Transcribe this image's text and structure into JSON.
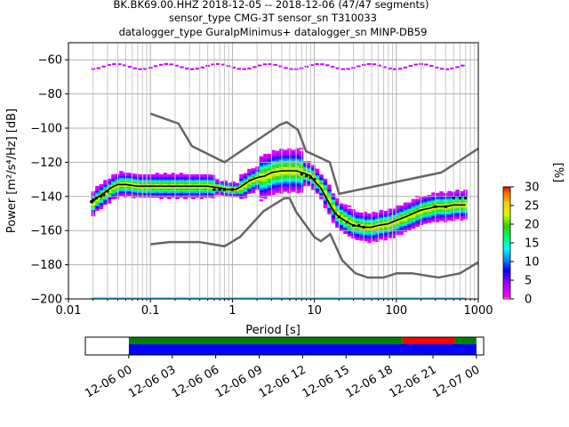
{
  "title": {
    "line1": "BK.BK69.00.HHZ   2018-12-05 -- 2018-12-06  (47/47 segments)",
    "line2": "sensor_type CMG-3T sensor_sn T310033",
    "line3": "datalogger_type GuralpMinimus+ datalogger_sn MINP-DB59"
  },
  "chart_data": [
    {
      "type": "heatmap",
      "title": "BK.BK69.00.HHZ   2018-12-05 -- 2018-12-06  (47/47 segments)",
      "xlabel": "Period [s]",
      "ylabel": "Power [m²/s⁴/Hz] [dB]",
      "xscale": "log",
      "xlim": [
        0.01,
        1000
      ],
      "ylim": [
        -200,
        -50
      ],
      "x_tick_labels": [
        "0.01",
        "0.1",
        "1",
        "10",
        "100",
        "1000"
      ],
      "y_ticks": [
        -200,
        -180,
        -160,
        -140,
        -120,
        -100,
        -80,
        -60
      ],
      "y_tick_labels": [
        "−200",
        "−180",
        "−160",
        "−140",
        "−120",
        "−100",
        "−80",
        "−60"
      ],
      "colorbar": {
        "label": "[%]",
        "range": [
          0,
          30
        ],
        "ticks": [
          0,
          5,
          10,
          15,
          20,
          25,
          30
        ]
      },
      "grid": true,
      "mode_curve": {
        "x": [
          0.019,
          0.022,
          0.027,
          0.033,
          0.04,
          0.05,
          0.07,
          0.1,
          0.15,
          0.2,
          0.3,
          0.5,
          0.7,
          0.9,
          1.1,
          1.3,
          1.6,
          2.0,
          2.5,
          3.0,
          4.0,
          5.0,
          6.0,
          7.0,
          8.0,
          9.0,
          10.0,
          12.0,
          14.0,
          16.0,
          18.0,
          20.0,
          25.0,
          30.0,
          40.0,
          50.0,
          60.0,
          80.0,
          100.0,
          130.0,
          160.0,
          200.0,
          250.0,
          300.0,
          400.0,
          500.0,
          600.0,
          700.0
        ],
        "y": [
          -144,
          -141,
          -138,
          -135,
          -133,
          -133,
          -134,
          -134,
          -134,
          -134,
          -134,
          -134,
          -135,
          -136,
          -136,
          -134,
          -131,
          -129,
          -128,
          -126,
          -125,
          -125,
          -125,
          -126,
          -127,
          -128,
          -131,
          -135,
          -141,
          -146,
          -150,
          -152,
          -155,
          -157,
          -158,
          -158,
          -157,
          -156,
          -154,
          -152,
          -150,
          -148,
          -147,
          -146,
          -146,
          -145,
          -145,
          -145
        ]
      },
      "mode_markers": {
        "x": [
          0.019,
          0.02,
          0.022,
          0.025,
          0.027,
          0.03,
          0.6,
          0.7,
          0.8,
          1.0,
          7,
          8,
          9,
          10,
          18,
          20,
          25,
          30,
          35,
          40,
          300,
          400,
          500,
          600,
          700
        ],
        "y": [
          -143,
          -142,
          -141,
          -140,
          -139,
          -137,
          -136,
          -136,
          -136,
          -136,
          -127,
          -128,
          -129,
          -130,
          -150,
          -152,
          -155,
          -157,
          -157,
          -158,
          -146,
          -146,
          -141,
          -141,
          -141
        ]
      },
      "noise_models": [
        {
          "name": "high-noise-model",
          "x": [
            0.1,
            0.22,
            0.32,
            0.8,
            3.8,
            4.6,
            6.3,
            7.9,
            15.4,
            20.0,
            354.8,
            1000.0
          ],
          "y": [
            -91.5,
            -97.4,
            -110.5,
            -120.0,
            -98.0,
            -96.5,
            -101.0,
            -113.5,
            -120.0,
            -138.5,
            -126.0,
            -112.0
          ]
        },
        {
          "name": "low-noise-model",
          "x": [
            0.1,
            0.17,
            0.4,
            0.8,
            1.24,
            2.4,
            4.3,
            5.0,
            6.0,
            10.0,
            12.0,
            15.6,
            21.9,
            31.6,
            45.0,
            70.0,
            101.0,
            154.0,
            328.0,
            600.0,
            1000.0
          ],
          "y": [
            -168.0,
            -166.7,
            -166.7,
            -169.2,
            -163.7,
            -148.6,
            -141.1,
            -141.1,
            -149.0,
            -163.8,
            -166.2,
            -162.1,
            -177.5,
            -185.0,
            -187.5,
            -187.5,
            -185.0,
            -185.0,
            -187.5,
            -185.0,
            -178.5
          ]
        }
      ]
    },
    {
      "type": "bar",
      "title": "",
      "xlabel": "",
      "ylabel": "",
      "x_tick_labels": [
        "12-06 00",
        "12-06 03",
        "12-06 06",
        "12-06 09",
        "12-06 12",
        "12-06 15",
        "12-06 18",
        "12-06 21",
        "12-07 00"
      ],
      "xlim_hours": [
        -3,
        24.5
      ],
      "data_coverage": [
        {
          "start_hour": 0,
          "end_hour": 24,
          "color": "#0000ff"
        }
      ],
      "gap_overlap": [
        {
          "start_hour": 0,
          "end_hour": 18.9,
          "color": "#008000"
        },
        {
          "start_hour": 18.9,
          "end_hour": 22.5,
          "color": "#ff0000"
        },
        {
          "start_hour": 22.5,
          "end_hour": 24,
          "color": "#008000"
        }
      ]
    }
  ]
}
